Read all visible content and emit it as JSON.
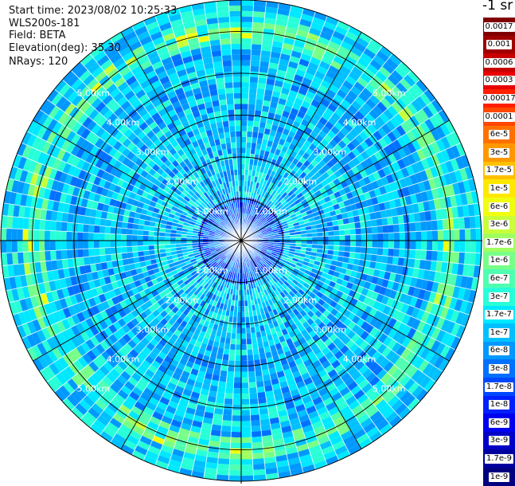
{
  "info": {
    "start_time": "Start time: 2023/08/02 10:25:33",
    "instrument": "WLS200s-181",
    "field": "Field: BETA",
    "elevation": "Elevation(deg): 35.30",
    "nrays": "NRays: 120"
  },
  "unit_label": "-1 sr",
  "range_rings": {
    "labels": [
      "1.00km",
      "2.00km",
      "3.00km",
      "4.00km",
      "5.00km"
    ],
    "values_km": [
      1,
      2,
      3,
      4,
      5
    ],
    "max_range_km": 5.75
  },
  "colorbar": {
    "levels": [
      {
        "label": "0.0017",
        "color": "#800000"
      },
      {
        "label": "0.001",
        "color": "#a00000"
      },
      {
        "label": "0.0006",
        "color": "#c80000"
      },
      {
        "label": "0.0003",
        "color": "#e80000"
      },
      {
        "label": "0.00017",
        "color": "#ff2000"
      },
      {
        "label": "0.0001",
        "color": "#ff4800"
      },
      {
        "label": "6e-5",
        "color": "#ff7000"
      },
      {
        "label": "3e-5",
        "color": "#ff9800"
      },
      {
        "label": "1.7e-5",
        "color": "#ffc000"
      },
      {
        "label": "1e-5",
        "color": "#ffe800"
      },
      {
        "label": "6e-6",
        "color": "#f0ff10"
      },
      {
        "label": "3e-6",
        "color": "#c8ff38"
      },
      {
        "label": "1.7e-6",
        "color": "#a0ff60"
      },
      {
        "label": "1e-6",
        "color": "#78ff88"
      },
      {
        "label": "6e-7",
        "color": "#50ffb0"
      },
      {
        "label": "3e-7",
        "color": "#28ffd8"
      },
      {
        "label": "1.7e-7",
        "color": "#00e8ff"
      },
      {
        "label": "1e-7",
        "color": "#00c0ff"
      },
      {
        "label": "6e-8",
        "color": "#0098ff"
      },
      {
        "label": "3e-8",
        "color": "#0070ff"
      },
      {
        "label": "1.7e-8",
        "color": "#0048ff"
      },
      {
        "label": "1e-8",
        "color": "#0020ff"
      },
      {
        "label": "6e-9",
        "color": "#0000f0"
      },
      {
        "label": "3e-9",
        "color": "#0000c8"
      },
      {
        "label": "1.7e-9",
        "color": "#0000a0"
      },
      {
        "label": "1e-9",
        "color": "#000080"
      }
    ]
  }
}
